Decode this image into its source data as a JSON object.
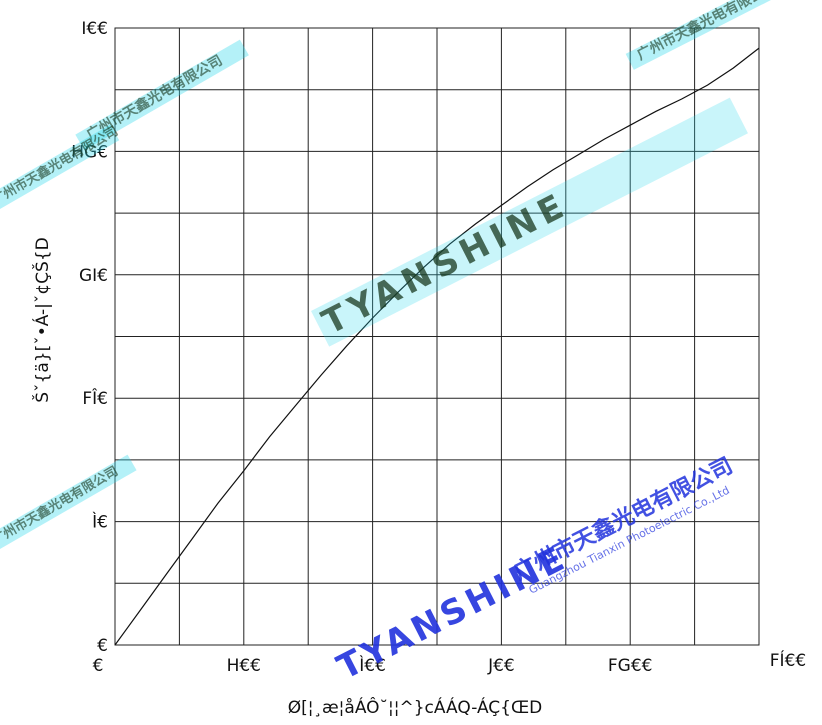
{
  "chart_data": {
    "type": "line",
    "title": "",
    "xlabel": "Ø[¦¸æ¦åÁÔ˘¦¦^}cÁÁQ-ÁÇ{ŒD",
    "ylabel": "Šˇ{ä}[ˇ•Á-|ˇ¢ÇŠ{D",
    "x_tick_labels": [
      "€",
      "H€€",
      "Ì€€",
      "J€€",
      "FG€€",
      "FÍ€€"
    ],
    "y_tick_labels": [
      "€",
      "Ì€",
      "FÎ€",
      "GI€",
      "HG€",
      "I€€"
    ],
    "xlim": [
      0,
      1500
    ],
    "ylim": [
      0,
      400
    ],
    "grid": true,
    "legend": "none",
    "series": [
      {
        "x": [
          0,
          60,
          120,
          180,
          240,
          300,
          360,
          420,
          480,
          540,
          600,
          660,
          720,
          780,
          840,
          900,
          960,
          1020,
          1080,
          1140,
          1200,
          1260,
          1320,
          1380,
          1440,
          1500
        ],
        "values": [
          0,
          23,
          46,
          69,
          92,
          113,
          135,
          155,
          175,
          194,
          212,
          229,
          245,
          260,
          273,
          285,
          297,
          308,
          318,
          328,
          337,
          346,
          354,
          363,
          374,
          387
        ]
      }
    ],
    "colors": {
      "curve": "#111111",
      "grid": "#222222",
      "watermark_cyan": "#27d6ea",
      "watermark_blue": "#2233dd"
    }
  },
  "watermarks": {
    "brand": "TYANSHINE",
    "company_cn": "广州市天鑫光电有限公司",
    "company_en": "Guangzhou Tianxin Photoelectric Co.,Ltd"
  }
}
